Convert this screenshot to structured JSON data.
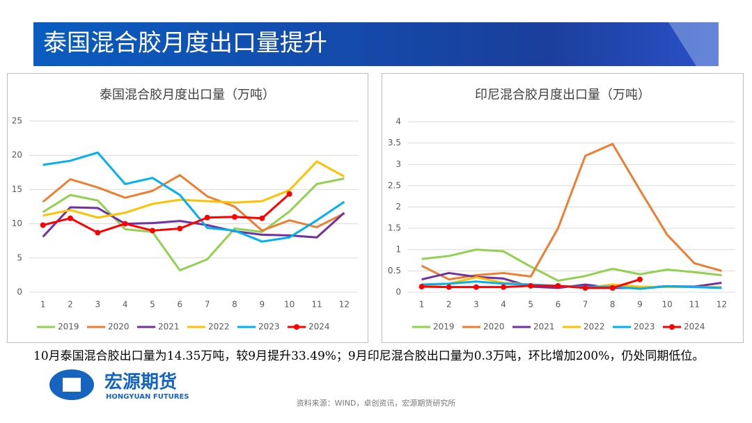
{
  "header": {
    "title": "泰国混合胶月度出口量提升"
  },
  "chart_data": [
    {
      "type": "line",
      "title": "泰国混合胶月度出口量（万吨）",
      "categories": [
        "1",
        "2",
        "3",
        "4",
        "5",
        "6",
        "7",
        "8",
        "9",
        "10",
        "11",
        "12"
      ],
      "ylim": [
        0,
        25
      ],
      "yticks": [
        0,
        5,
        10,
        15,
        20,
        25
      ],
      "grid": true,
      "legend": "bottom",
      "series": [
        {
          "name": "2019",
          "color": "#92d050",
          "values": [
            11.7,
            14.2,
            13.4,
            9.2,
            8.8,
            3.2,
            4.8,
            9.3,
            8.8,
            11.8,
            15.8,
            16.6
          ]
        },
        {
          "name": "2020",
          "color": "#ed7d31",
          "values": [
            13.2,
            16.5,
            15.3,
            13.8,
            14.8,
            17.1,
            14.0,
            12.5,
            9.0,
            10.5,
            9.5,
            11.5
          ]
        },
        {
          "name": "2021",
          "color": "#7030a0",
          "values": [
            8.1,
            12.4,
            12.3,
            10.0,
            10.1,
            10.4,
            9.8,
            8.9,
            8.4,
            8.3,
            8.0,
            11.6
          ]
        },
        {
          "name": "2022",
          "color": "#ffc000",
          "values": [
            11.2,
            12.0,
            10.9,
            11.6,
            12.9,
            13.5,
            13.3,
            13.1,
            13.3,
            14.9,
            19.1,
            16.9
          ]
        },
        {
          "name": "2023",
          "color": "#00b0f0",
          "values": [
            18.6,
            19.2,
            20.4,
            15.8,
            16.7,
            14.2,
            9.4,
            9.0,
            7.4,
            8.0,
            10.5,
            13.2
          ]
        },
        {
          "name": "2024",
          "color": "#ff0000",
          "marker": true,
          "values": [
            9.8,
            10.8,
            8.7,
            10.0,
            9.0,
            9.3,
            10.9,
            11.0,
            10.8,
            14.35,
            null,
            null
          ]
        }
      ]
    },
    {
      "type": "line",
      "title": "印尼混合胶月度出口量（万吨）",
      "categories": [
        "1",
        "2",
        "3",
        "4",
        "5",
        "6",
        "7",
        "8",
        "9",
        "10",
        "11",
        "12"
      ],
      "ylim": [
        0,
        4
      ],
      "yticks": [
        0,
        0.5,
        1,
        1.5,
        2,
        2.5,
        3,
        3.5,
        4
      ],
      "grid": true,
      "legend": "bottom",
      "series": [
        {
          "name": "2019",
          "color": "#92d050",
          "values": [
            0.78,
            0.85,
            1.0,
            0.96,
            0.6,
            0.27,
            0.38,
            0.55,
            0.42,
            0.53,
            0.47,
            0.4
          ]
        },
        {
          "name": "2020",
          "color": "#ed7d31",
          "values": [
            0.62,
            0.3,
            0.4,
            0.45,
            0.37,
            1.5,
            3.2,
            3.48,
            2.4,
            1.35,
            0.68,
            0.5
          ]
        },
        {
          "name": "2021",
          "color": "#7030a0",
          "values": [
            0.3,
            0.45,
            0.36,
            0.32,
            0.13,
            0.1,
            0.18,
            0.1,
            0.1,
            0.14,
            0.13,
            0.22
          ]
        },
        {
          "name": "2022",
          "color": "#ffc000",
          "values": [
            0.15,
            0.2,
            0.35,
            0.22,
            0.18,
            0.15,
            0.1,
            0.18,
            0.13,
            0.12,
            0.12,
            0.12
          ]
        },
        {
          "name": "2023",
          "color": "#00b0f0",
          "values": [
            0.18,
            0.2,
            0.25,
            0.2,
            0.18,
            0.15,
            0.12,
            0.13,
            0.08,
            0.14,
            0.12,
            0.1
          ]
        },
        {
          "name": "2024",
          "color": "#ff0000",
          "marker": true,
          "values": [
            0.13,
            0.12,
            0.12,
            0.12,
            0.15,
            0.15,
            0.1,
            0.1,
            0.3,
            null,
            null,
            null
          ]
        }
      ]
    }
  ],
  "caption": "10月泰国混合胶出口量为14.35万吨，较9月提升33.49%；9月印尼混合胶出口量为0.3万吨，环比增加200%，仍处同期低位。",
  "logo": {
    "name": "宏源期货",
    "english": "HONGYUAN FUTURES"
  },
  "source": "资料来源：WIND，卓创资讯，宏源期货研究所"
}
